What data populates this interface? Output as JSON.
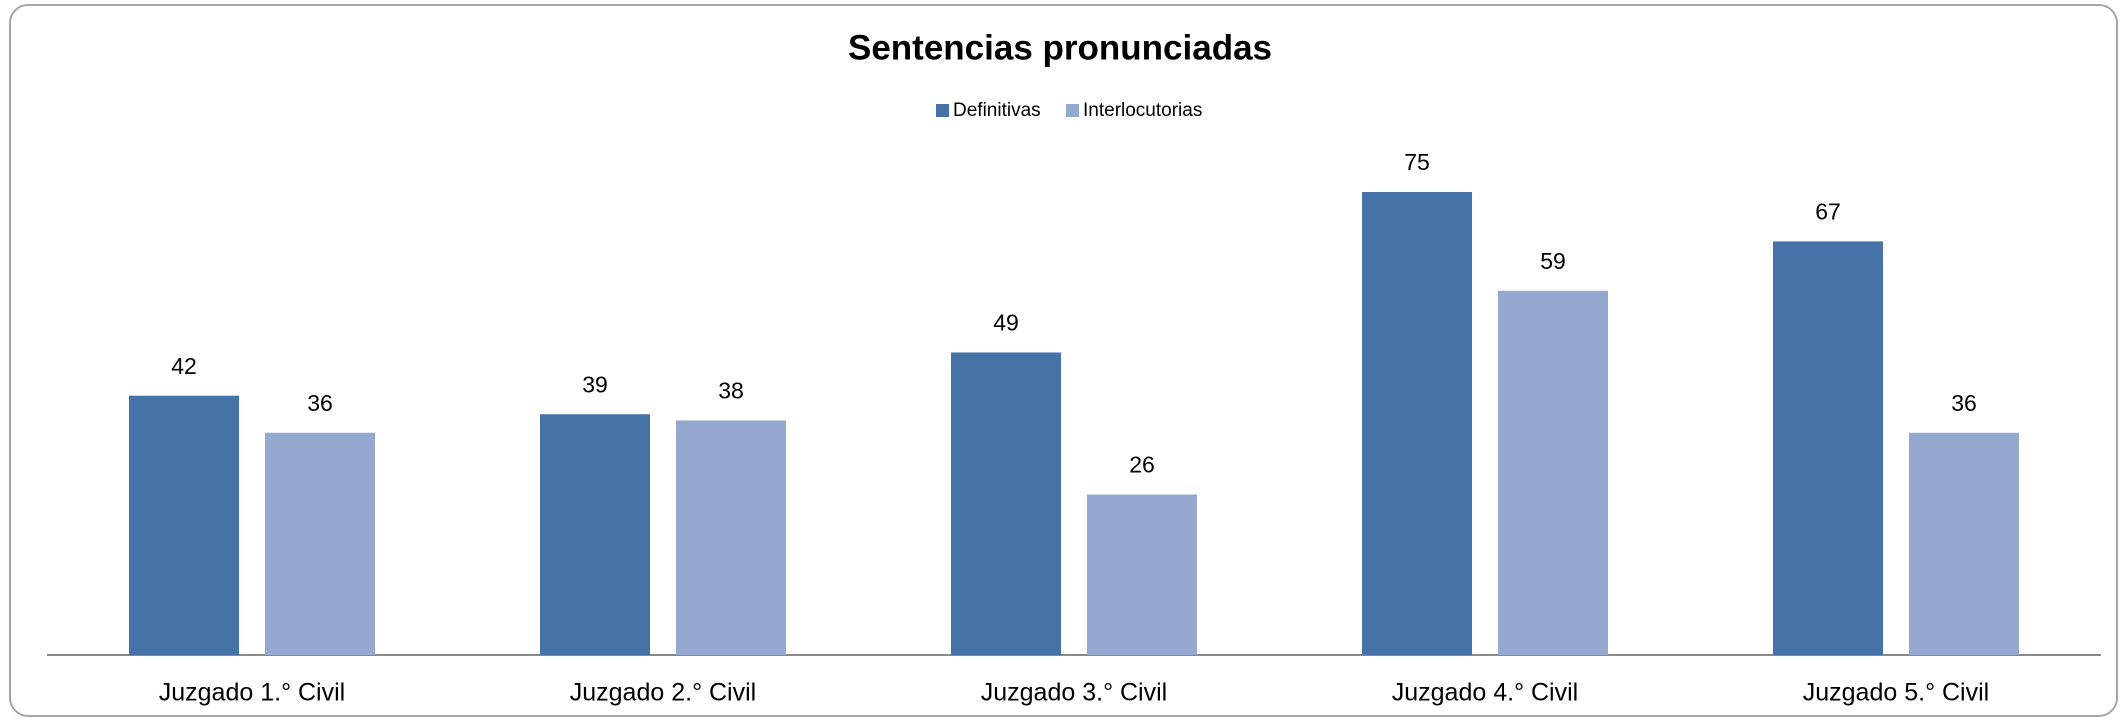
{
  "chart_data": {
    "type": "bar",
    "title": "Sentencias pronunciadas",
    "categories": [
      "Juzgado 1.° Civil",
      "Juzgado 2.° Civil",
      "Juzgado 3.° Civil",
      "Juzgado 4.° Civil",
      "Juzgado 5.° Civil"
    ],
    "series": [
      {
        "name": "Definitivas",
        "color": "#4572a7",
        "values": [
          42,
          39,
          49,
          75,
          67
        ]
      },
      {
        "name": "Interlocutorias",
        "color": "#95a9d0",
        "values": [
          36,
          38,
          26,
          59,
          36
        ]
      }
    ],
    "legend": "top"
  }
}
